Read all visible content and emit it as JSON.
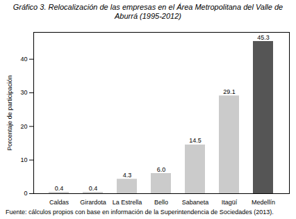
{
  "chart_data": {
    "type": "bar",
    "title": "Gráfico 3. Relocalización de las empresas en el Área Metropolitana del Valle de Aburrá (1995-2012)",
    "caption": "Fuente: cálculos propios con base en información de la Superintendencia de Sociedades (2013).",
    "ylabel": "Porcentaje de participación",
    "categories": [
      "Caldas",
      "Girardota",
      "La Estrella",
      "Bello",
      "Sabaneta",
      "Itagüí",
      "Medellín"
    ],
    "values": [
      0.4,
      0.4,
      4.3,
      6.0,
      14.5,
      29.1,
      45.3
    ],
    "value_labels": [
      "0.4",
      "0.4",
      "4.3",
      "6.0",
      "14.5",
      "29.1",
      "45.3"
    ],
    "colors": [
      "#cbcbcb",
      "#cbcbcb",
      "#cbcbcb",
      "#cbcbcb",
      "#cbcbcb",
      "#cbcbcb",
      "#555555"
    ],
    "ylim": [
      0,
      48
    ],
    "yticks": [
      0,
      10,
      20,
      30,
      40
    ],
    "data_labels": true,
    "grid": false
  }
}
